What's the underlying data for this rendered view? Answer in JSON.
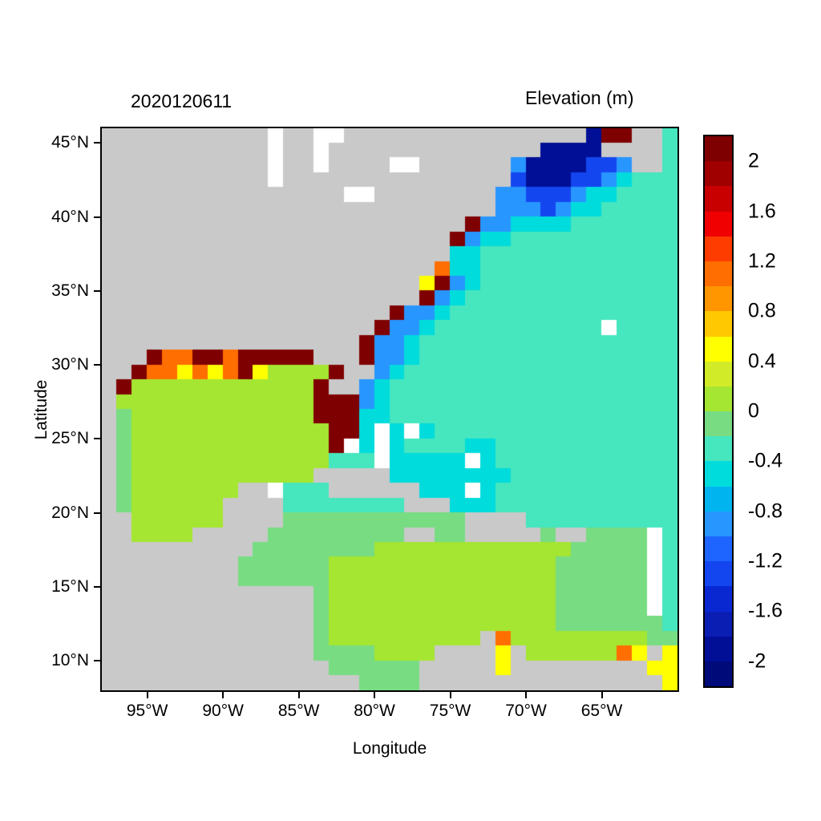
{
  "chart_data": {
    "type": "heatmap",
    "title": "Elevation (m)",
    "run_label": "2020120611",
    "xlabel": "Longitude",
    "ylabel": "Latitude",
    "x_ticks_deg_w": [
      95,
      90,
      85,
      80,
      75,
      70,
      65
    ],
    "x_tick_labels": [
      "95°W",
      "90°W",
      "85°W",
      "80°W",
      "75°W",
      "70°W",
      "65°W"
    ],
    "y_ticks_deg_n": [
      45,
      40,
      35,
      30,
      25,
      20,
      15,
      10
    ],
    "y_tick_labels": [
      "45°N",
      "40°N",
      "35°N",
      "30°N",
      "25°N",
      "20°N",
      "15°N",
      "10°N"
    ],
    "lon_domain_deg_w": [
      98,
      60
    ],
    "lat_domain_deg_n": [
      46,
      8
    ],
    "colorbar": {
      "tick_labels": [
        "2",
        "1.6",
        "1.2",
        "0.8",
        "0.4",
        "0",
        "-0.4",
        "-0.8",
        "-1.2",
        "-1.6",
        "-2"
      ],
      "tick_values": [
        2,
        1.6,
        1.2,
        0.8,
        0.4,
        0,
        -0.4,
        -0.8,
        -1.2,
        -1.6,
        -2
      ],
      "value_range": [
        -2.2,
        2.2
      ],
      "band_colors_top_to_bottom": [
        "#7f0000",
        "#a00000",
        "#c80000",
        "#f00000",
        "#ff3c00",
        "#ff6e00",
        "#ff9600",
        "#ffc800",
        "#ffff00",
        "#d2eb28",
        "#a5e632",
        "#78dc82",
        "#46e6be",
        "#00dcdc",
        "#00b4f0",
        "#2896ff",
        "#1e64ff",
        "#1446f0",
        "#0a28d2",
        "#0a1eb4",
        "#000f96",
        "#000a78"
      ]
    },
    "grid": {
      "resolution_deg": 1,
      "order": "rows north to south (46N..8N), chars west to east (98W..60W)",
      "palette": {
        "L": "#c9c9c9",
        "W": "#ffffff",
        "d": "#7f0000",
        "o": "#ff6e00",
        "y": "#ffff00",
        "g": "#a5e632",
        "e": "#78dc82",
        "c": "#46e6be",
        "C": "#00dcdc",
        "b": "#2896ff",
        "B": "#1446f0",
        "N": "#000f96"
      },
      "palette_values_m": {
        "L": "land (gray)",
        "W": "no data (white)",
        "d": ">= 2.0",
        "o": "1.0 to 1.2",
        "y": "0.4 to 0.6",
        "g": "0 to 0.2",
        "e": "-0.2 to 0",
        "c": "-0.4 to -0.2",
        "C": "-0.6 to -0.4",
        "b": "-1.0 to -0.8",
        "B": "-1.4 to -1.2",
        "N": "-2.0 to -1.8"
      },
      "rows": [
        "LLLLLLLLLLLWLLWWLLLLLLLLLLLLLLLLNddLLc",
        "LLLLLLLLLLLWLLWLLLLLLLLLLLLLLNNNNLLLLc",
        "LLLLLLLLLLLWLLWLLLLWWLLLLLLbNNNNBBbLLc",
        "LLLLLLLLLLLWLLLLLLLLLLLLLLLBNNNBBbCccc",
        "LLLLLLLLLLLLLLLLWWLLLLLLLLbbBBBbCCcccc",
        "LLLLLLLLLLLLLLLLLLLLLLLLLLbbbBbCCccccc",
        "LLLLLLLLLLLLLLLLLLLLLLLLdbbCCCCccccccc",
        "LLLLLLLLLLLLLLLLLLLLLLLdbCCccccccccccc",
        "LLLLLLLLLLLLLLLLLLLLLLLCCccccccccccccc",
        "LLLLLLLLLLLLLLLLLLLLLLoCCccccccccccccc",
        "LLLLLLLLLLLLLLLLLLLLLydbCccccccccccccc",
        "LLLLLLLLLLLLLLLLLLLLLdbCcccccccccccccc",
        "LLLLLLLLLLLLLLLLLLLdbbCccccccccccccccc",
        "LLLLLLLLLLLLLLLLLLdbbCcccccccccccWcccc",
        "LLLLLLLLLLLLLLLLLdbbCccccccccccccccccc",
        "LLLdooddodddddLLLdbbCccccccccccccccccc",
        "LLdooyoyodyggggdLLbCcccccccccccccccccc",
        "LdggggggggggggdLLbCccccccccccccccccccc",
        "LgggggggggggggdddbCccccccccccccccccccc",
        "LeggggggggggggdddCCccccccccccccccccccc",
        "LegggggggggggggddCWCWCcccccccccccccccc",
        "LegggggggggggggdWCWCccccCCcccccccccccc",
        "LegggggggggggggcccWCCCCCWCcccccccccccc",
        "LeggggggggggggLLLLLCCCCCCCCccccccccccc",
        "LegggggggLLWcccLLLLLLCCCWCcccccccccccc",
        "LeggggggLLLLccccccccLLLCCCcccccccccccc",
        "LLggggggLLLLeeeeeeeeeeeeLLLLcccccccccc",
        "LLggggLLLLLeeeeeeeeeLLeeLLLLLeLLeeeeWc",
        "LLLLLLLLLLeeeeeeeegggggggggggggeeeeeWc",
        "LLLLLLLLLeeeeeegggggggggggggggeeeeeeWc",
        "LLLLLLLLLeeeeeegggggggggggggggeeeeeeWc",
        "LLLLLLLLLLLLLLegggggggggggggggeeeeeeWc",
        "LLLLLLLLLLLLLLegggggggggggggggeeeeeeWc",
        "LLLLLLLLLLLLLLegggggggggggggggeeeeeeec",
        "LLLLLLLLLLLLLLeggggggggggLogggggggggee",
        "LLLLLLLLLLLLLLeeeeggggLLLLyLggggggoyLy",
        "LLLLLLLLLLLLLLLeeeeeeLLLLLyLLLLLLLLLyy",
        "LLLLLLLLLLLLLLLLLeeeeLLLLLLLLLLLLLLLLy"
      ]
    }
  }
}
